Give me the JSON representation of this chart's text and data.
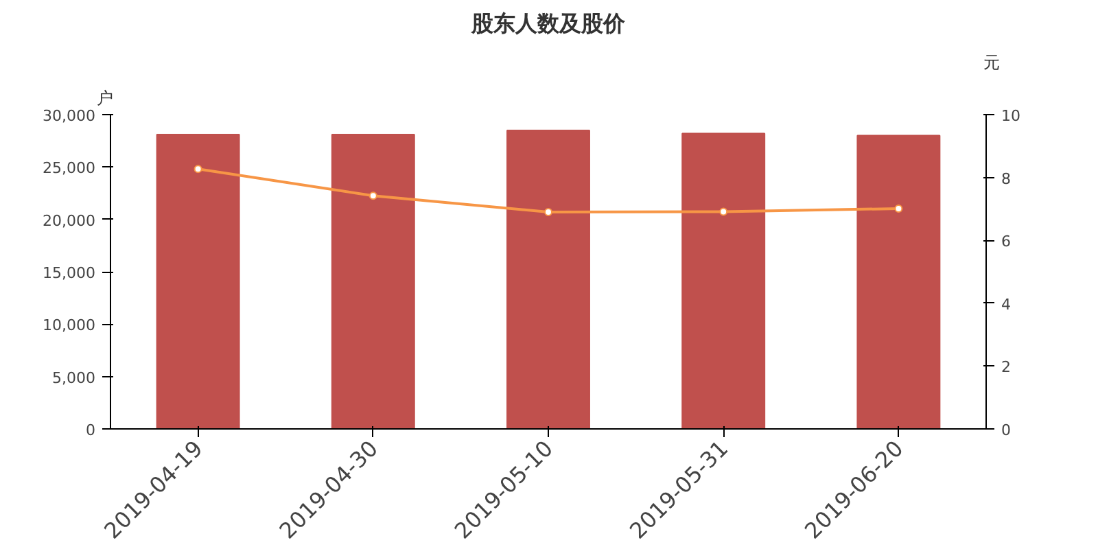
{
  "chart_data": {
    "type": "bar",
    "title": "股东人数及股价",
    "ylabel": "户",
    "y2label": "元",
    "categories": [
      "2019-04-19",
      "2019-04-30",
      "2019-05-10",
      "2019-05-31",
      "2019-06-20"
    ],
    "series": [
      {
        "color": "#c0504d",
        "values": [
          28100,
          28100,
          28500,
          28200,
          28000
        ]
      },
      {
        "type": "line",
        "axis": "y2",
        "color": "#f79646",
        "marker": "circle",
        "values": [
          8.27,
          7.42,
          6.9,
          6.91,
          7.01
        ]
      }
    ],
    "ylim": [
      0,
      30000
    ],
    "yticks": [
      0,
      {
        "value": 5000,
        "label": "5,000"
      },
      {
        "value": 10000,
        "label": "10,000"
      },
      {
        "value": 15000,
        "label": "15,000"
      },
      {
        "value": 20000,
        "label": "20,000"
      },
      {
        "value": 25000,
        "label": "25,000"
      },
      {
        "value": 30000,
        "label": "30,000"
      }
    ],
    "y2lim": [
      0,
      10
    ],
    "y2ticks": [
      0,
      2,
      4,
      6,
      8,
      10
    ],
    "grid": false
  }
}
